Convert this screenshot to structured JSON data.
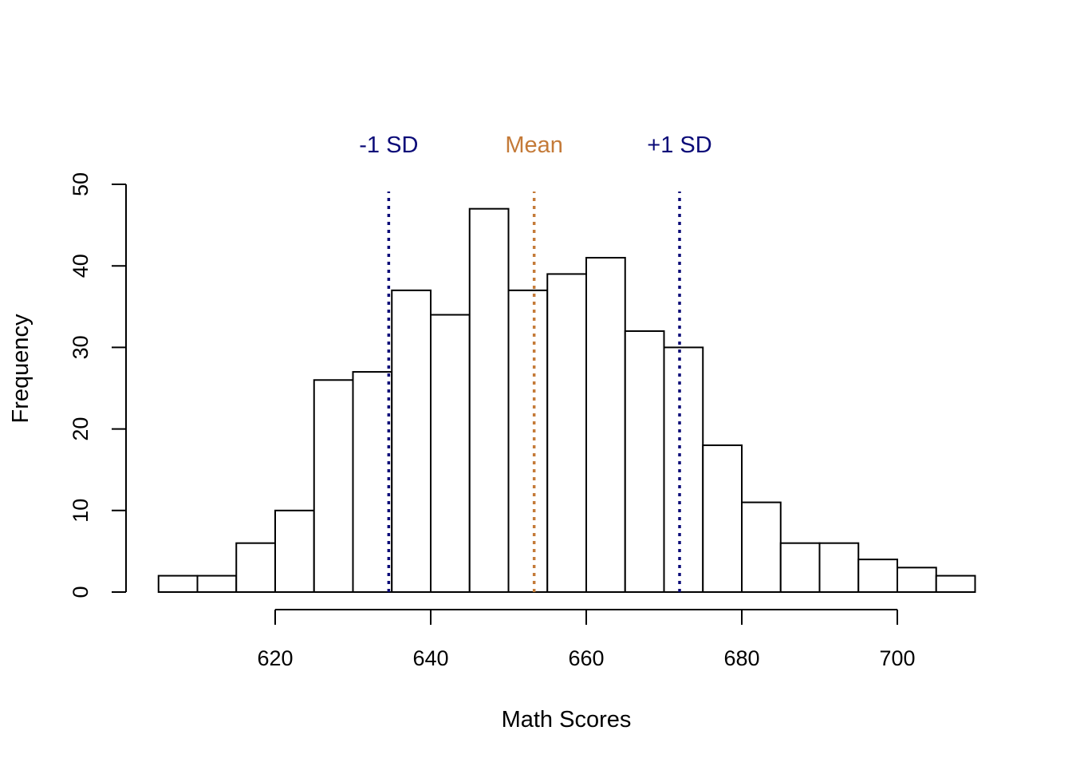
{
  "chart_data": {
    "type": "bar",
    "subtype": "histogram",
    "title": "",
    "xlabel": "Math Scores",
    "ylabel": "Frequency",
    "bin_edges": [
      605,
      610,
      615,
      620,
      625,
      630,
      635,
      640,
      645,
      650,
      655,
      660,
      665,
      670,
      675,
      680,
      685,
      690,
      695,
      700,
      705,
      710
    ],
    "values": [
      2,
      2,
      6,
      10,
      26,
      27,
      37,
      34,
      47,
      37,
      39,
      41,
      32,
      30,
      18,
      11,
      6,
      6,
      4,
      3,
      2
    ],
    "xticks": [
      620,
      640,
      660,
      680,
      700
    ],
    "yticks": [
      0,
      10,
      20,
      30,
      40,
      50
    ],
    "xlim": [
      605,
      710
    ],
    "ylim": [
      0,
      50
    ],
    "grid": false,
    "bar_fill": "#ffffff",
    "bar_stroke": "#000000",
    "reference_lines": [
      {
        "label": "-1 SD",
        "x": 634.6,
        "color": "#0b0b78",
        "style": "dotted"
      },
      {
        "label": "Mean",
        "x": 653.3,
        "color": "#c47a38",
        "style": "dotted"
      },
      {
        "label": "+1 SD",
        "x": 672.0,
        "color": "#0b0b78",
        "style": "dotted"
      }
    ]
  }
}
